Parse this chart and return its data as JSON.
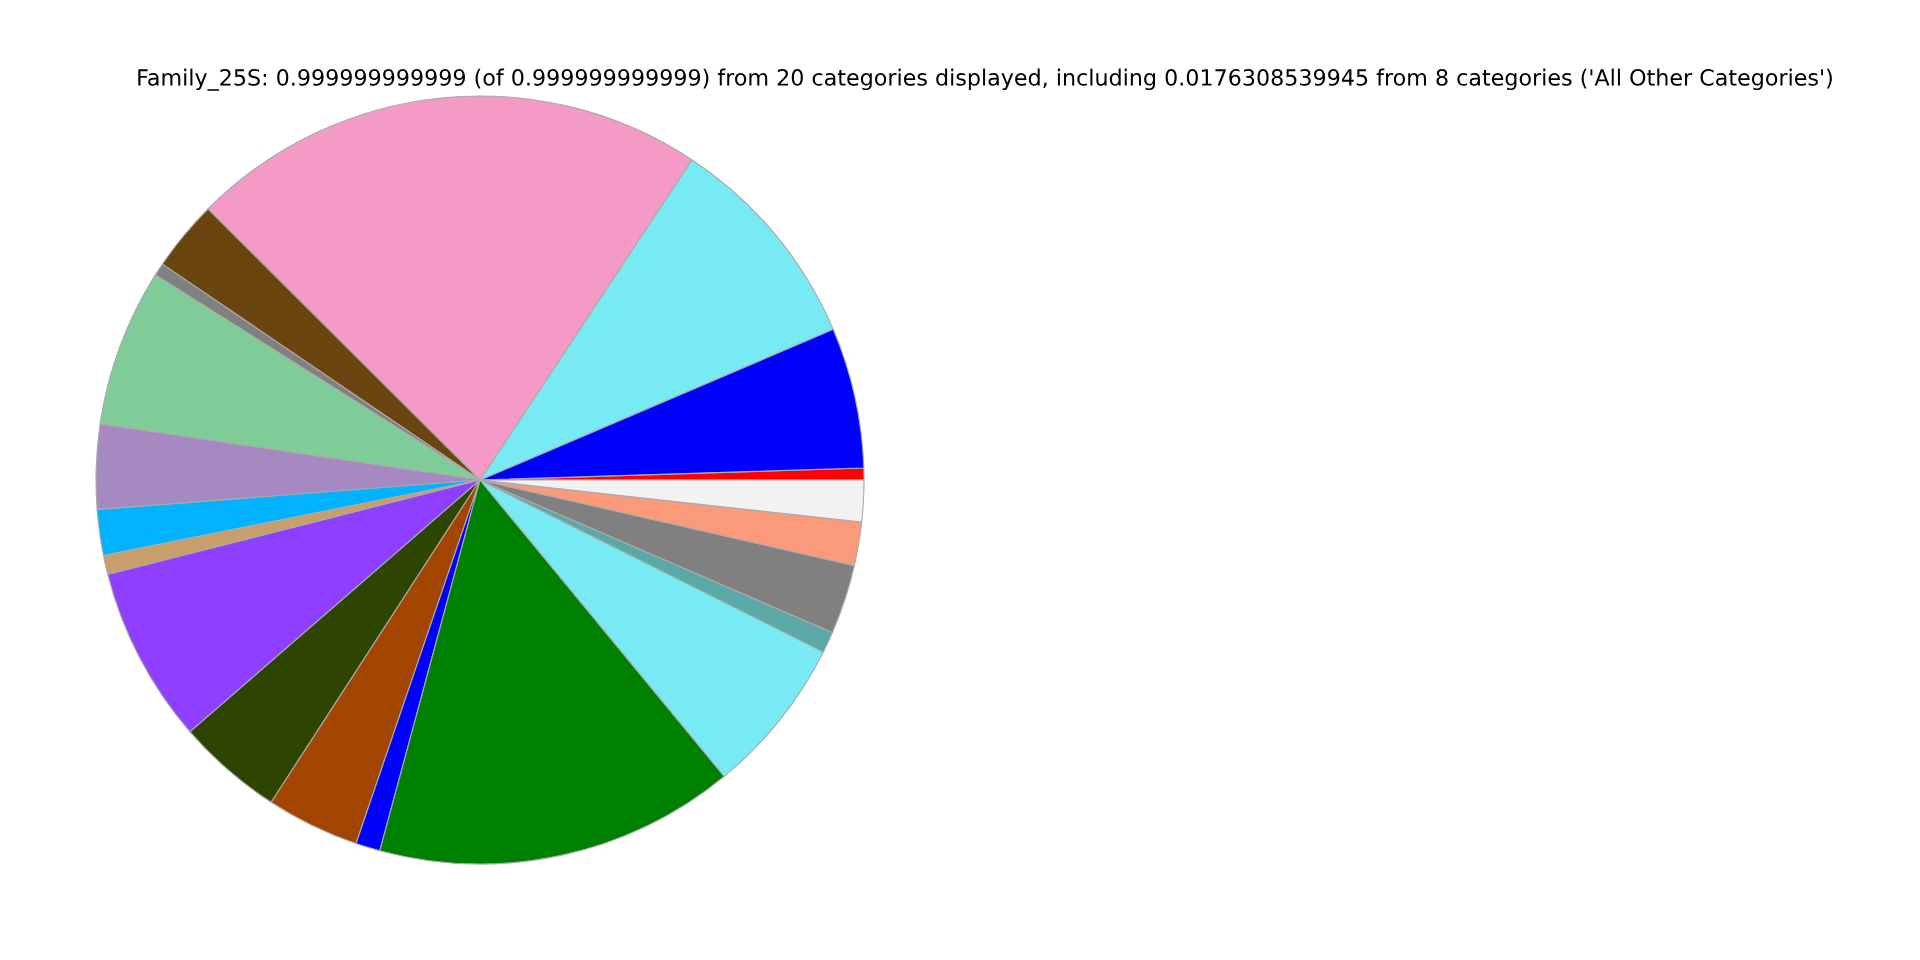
{
  "chart_data": {
    "type": "pie",
    "title": "Family_25S: 0.999999999999 (of 0.999999999999) from 20 categories displayed, including 0.0176308539945 from 8 categories ('All Other Categories')",
    "categories": [
      null,
      null,
      null,
      null,
      null,
      null,
      null,
      null,
      null,
      null,
      null,
      null,
      null,
      null,
      null,
      null,
      null,
      null,
      null,
      null
    ],
    "values": [
      0.5,
      5.92,
      9.28,
      21.83,
      2.97,
      0.53,
      6.64,
      3.56,
      1.92,
      0.81,
      7.42,
      4.47,
      3.92,
      1.03,
      15.17,
      6.64,
      0.89,
      2.92,
      1.83,
      1.75
    ],
    "colors": [
      "#ff0000",
      "#0000ff",
      "#77eaf4",
      "#f49ac6",
      "#6b4510",
      "#808080",
      "#80cc99",
      "#a689c1",
      "#00b2ff",
      "#c89e6a",
      "#8f3fff",
      "#2d4500",
      "#a14500",
      "#0000ff",
      "#008000",
      "#77eaf4",
      "#5aa8a8",
      "#808080",
      "#fa9a7a",
      "#f2f2f2"
    ]
  }
}
